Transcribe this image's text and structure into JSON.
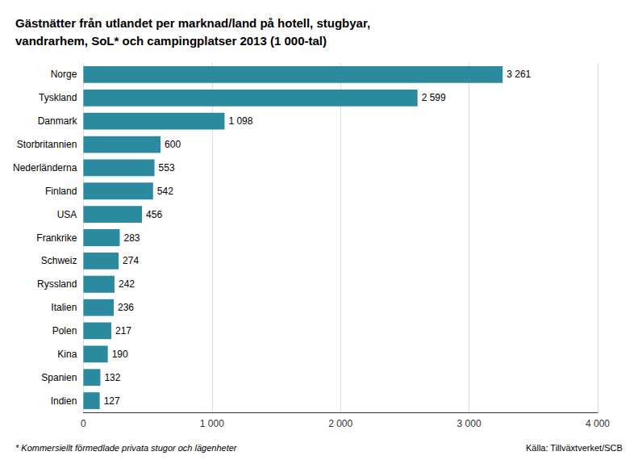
{
  "chart_data": {
    "type": "bar",
    "orientation": "horizontal",
    "title": "Gästnätter från utlandet per marknad/land på hotell, stugbyar,\nvandrarhem, SoL* och campingplatser 2013 (1 000-tal)",
    "categories": [
      "Norge",
      "Tyskland",
      "Danmark",
      "Storbritannien",
      "Nederländerna",
      "Finland",
      "USA",
      "Frankrike",
      "Schweiz",
      "Ryssland",
      "Italien",
      "Polen",
      "Kina",
      "Spanien",
      "Indien"
    ],
    "values": [
      3261,
      2599,
      1098,
      600,
      553,
      542,
      456,
      283,
      274,
      242,
      236,
      217,
      190,
      132,
      127
    ],
    "value_labels": [
      "3 261",
      "2 599",
      "1 098",
      "600",
      "553",
      "542",
      "456",
      "283",
      "274",
      "242",
      "236",
      "217",
      "190",
      "132",
      "127"
    ],
    "data_labels": true,
    "color": "#2b8a9e",
    "xlim": [
      0,
      4000
    ],
    "xticks": [
      0,
      {
        "value": 1000,
        "label": "1 000"
      },
      {
        "value": 2000,
        "label": "2 000"
      },
      {
        "value": 3000,
        "label": "3 000"
      },
      {
        "value": 4000,
        "label": "4 000"
      }
    ],
    "grid": true,
    "annotations": [
      "* Kommersiellt förmedlade privata stugor och lägenheter",
      "Källa: Tillväxtverket/SCB"
    ]
  }
}
